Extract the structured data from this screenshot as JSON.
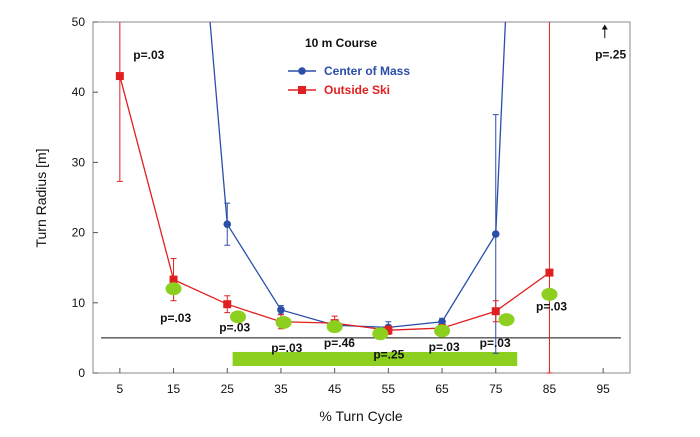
{
  "chart_data": {
    "type": "line",
    "title": "10 m Course",
    "xlabel": "% Turn Cycle",
    "ylabel": "Turn Radius [m]",
    "xlim": [
      0,
      100
    ],
    "ylim": [
      0,
      50
    ],
    "xticks": [
      5,
      15,
      25,
      35,
      45,
      55,
      65,
      75,
      85,
      95
    ],
    "yticks": [
      0,
      10,
      20,
      30,
      40,
      50
    ],
    "x_tick_labels": [
      "5",
      "15",
      "25",
      "35",
      "45",
      "55",
      "65",
      "75",
      "85",
      "95"
    ],
    "y_tick_labels": [
      "0",
      "10",
      "20",
      "30",
      "40",
      "50"
    ],
    "reference_line_y": 5,
    "series": [
      {
        "name": "Center of Mass",
        "color": "#2b4fa8",
        "marker": "circle",
        "points": [
          {
            "x": 25,
            "y": 21.2,
            "err": 3.0
          },
          {
            "x": 35,
            "y": 9.0,
            "err": 0.6
          },
          {
            "x": 45,
            "y": 6.8,
            "err": 0.6
          },
          {
            "x": 55,
            "y": 6.5,
            "err": 0.8
          },
          {
            "x": 65,
            "y": 7.3,
            "err": 0.5
          },
          {
            "x": 75,
            "y": 19.8,
            "err": 17.0
          }
        ],
        "offscale_left": {
          "x_from": 21.8,
          "x_to": 25
        },
        "offscale_right": {
          "x_from": 75,
          "x_to": 76.8
        }
      },
      {
        "name": "Outside Ski",
        "color": "#e02020",
        "marker": "square",
        "points": [
          {
            "x": 5,
            "y": 42.3,
            "err": 15.0
          },
          {
            "x": 15,
            "y": 13.3,
            "err": 3.0
          },
          {
            "x": 25,
            "y": 9.8,
            "err": 1.2
          },
          {
            "x": 35,
            "y": 7.3,
            "err": 1.0
          },
          {
            "x": 45,
            "y": 7.1,
            "err": 1.0
          },
          {
            "x": 55,
            "y": 6.1,
            "err": 0.6
          },
          {
            "x": 65,
            "y": 6.4,
            "err": 0.5
          },
          {
            "x": 75,
            "y": 8.8,
            "err": 1.5
          },
          {
            "x": 85,
            "y": 14.3,
            "err": 36.0
          }
        ]
      }
    ],
    "green_markers": [
      {
        "x": 15,
        "y": 12.0
      },
      {
        "x": 27,
        "y": 8.0
      },
      {
        "x": 35.5,
        "y": 7.2
      },
      {
        "x": 45,
        "y": 6.6
      },
      {
        "x": 53.5,
        "y": 5.6
      },
      {
        "x": 65,
        "y": 6.0
      },
      {
        "x": 77,
        "y": 7.6
      },
      {
        "x": 85,
        "y": 11.2
      }
    ],
    "significance_bar": {
      "x_start": 26,
      "x_end": 79,
      "y": 2,
      "color": "#8ccf1e"
    },
    "annotations": [
      {
        "text": "p=.03",
        "x": 7.5,
        "y": 44.7
      },
      {
        "text": "p=.03",
        "x": 12.5,
        "y": 7.3
      },
      {
        "text": "p=.03",
        "x": 23.5,
        "y": 5.9
      },
      {
        "text": "p=.03",
        "x": 33.2,
        "y": 3.0
      },
      {
        "text": "p=.46",
        "x": 43.0,
        "y": 3.7
      },
      {
        "text": "p=.25",
        "x": 52.2,
        "y": 2.1
      },
      {
        "text": "p=.03",
        "x": 62.5,
        "y": 3.1
      },
      {
        "text": "p=.03",
        "x": 72.0,
        "y": 3.7
      },
      {
        "text": "p=.03",
        "x": 82.5,
        "y": 8.9
      },
      {
        "text": "p=.25",
        "x": 93.5,
        "y": 44.8
      }
    ],
    "arrow_up": {
      "x": 95.3,
      "y_from": 47.7,
      "y_to": 49.5
    },
    "legend": {
      "position": "top-center",
      "title": "10 m Course",
      "entries": [
        "Center of Mass",
        "Outside Ski"
      ]
    }
  }
}
